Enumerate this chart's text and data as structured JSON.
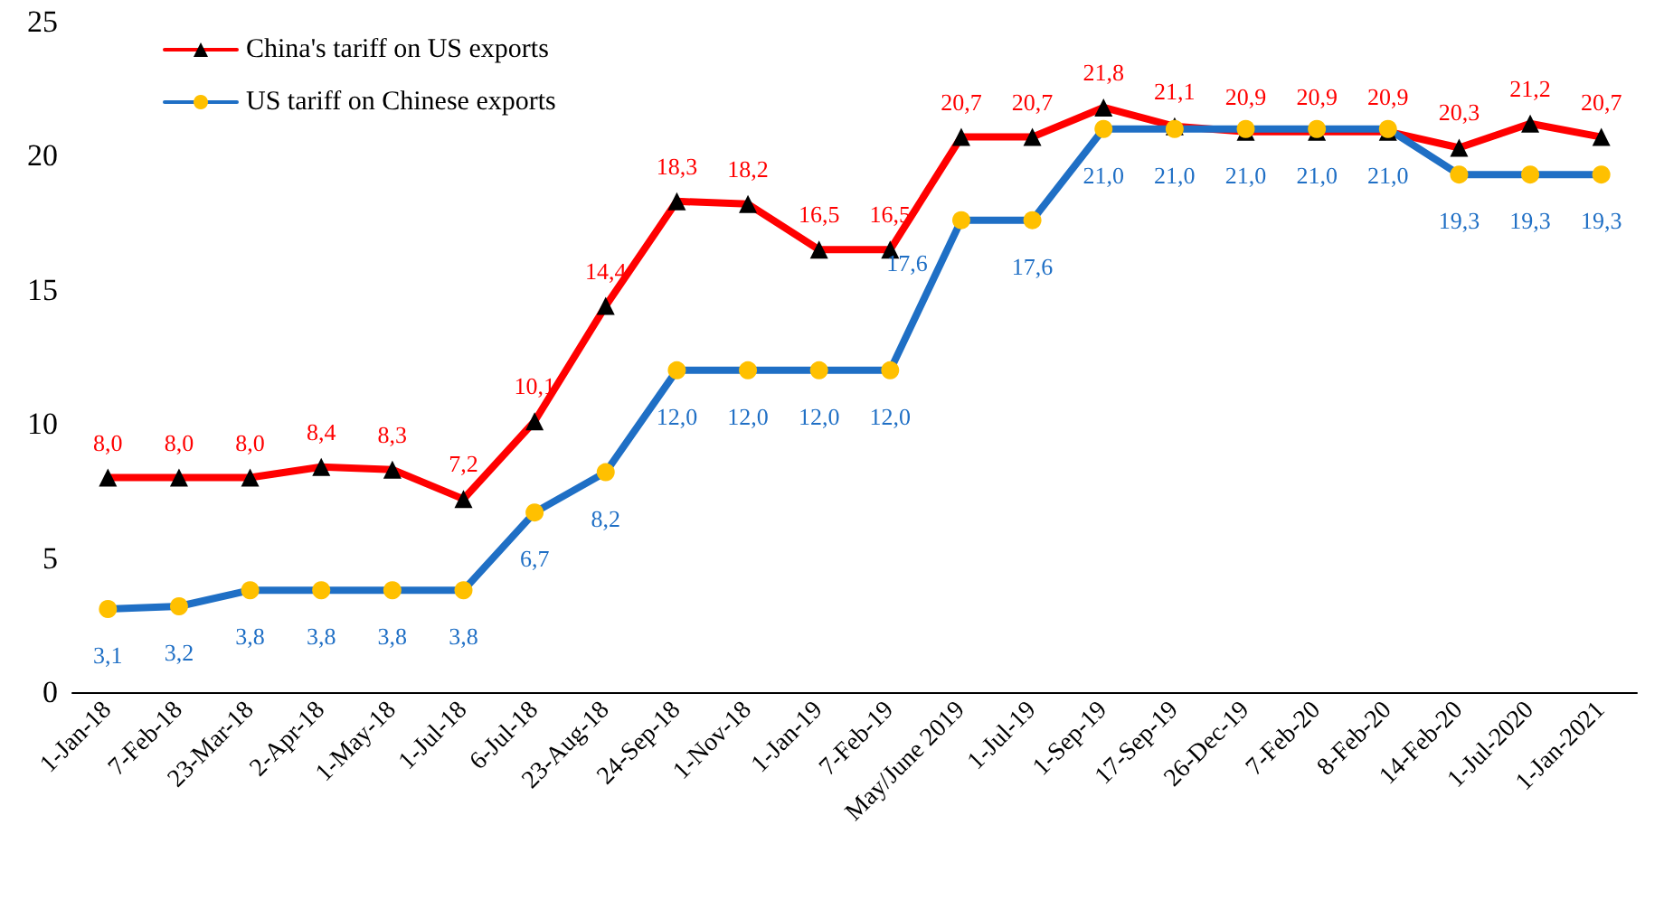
{
  "chart_data": {
    "type": "line",
    "categories": [
      "1-Jan-18",
      "7-Feb-18",
      "23-Mar-18",
      "2-Apr-18",
      "1-May-18",
      "1-Jul-18",
      "6-Jul-18",
      "23-Aug-18",
      "24-Sep-18",
      "1-Nov-18",
      "1-Jan-19",
      "7-Feb-19",
      "May/June 2019",
      "1-Jul-19",
      "1-Sep-19",
      "17-Sep-19",
      "26-Dec-19",
      "7-Feb-20",
      "8-Feb-20",
      "14-Feb-20",
      "1-Jul-2020",
      "1-Jan-2021"
    ],
    "series": [
      {
        "name": "China's tariff on US exports",
        "color": "#ff0000",
        "marker": "triangle",
        "values": [
          8.0,
          8.0,
          8.0,
          8.4,
          8.3,
          7.2,
          10.1,
          14.4,
          18.3,
          18.2,
          16.5,
          16.5,
          20.7,
          20.7,
          21.8,
          21.1,
          20.9,
          20.9,
          20.9,
          20.3,
          21.2,
          20.7
        ],
        "value_labels": [
          "8,0",
          "8,0",
          "8,0",
          "8,4",
          "8,3",
          "7,2",
          "10,1",
          "14,4",
          "18,3",
          "18,2",
          "16,5",
          "16,5",
          "20,7",
          "20,7",
          "21,8",
          "21,1",
          "20,9",
          "20,9",
          "20,9",
          "20,3",
          "21,2",
          "20,7"
        ]
      },
      {
        "name": "US tariff on Chinese exports",
        "color": "#1f6fc5",
        "marker": "circle",
        "values": [
          3.1,
          3.2,
          3.8,
          3.8,
          3.8,
          3.8,
          6.7,
          8.2,
          12.0,
          12.0,
          12.0,
          12.0,
          17.6,
          17.6,
          21.0,
          21.0,
          21.0,
          21.0,
          21.0,
          19.3,
          19.3,
          19.3
        ],
        "value_labels": [
          "3,1",
          "3,2",
          "3,8",
          "3,8",
          "3,8",
          "3,8",
          "6,7",
          "8,2",
          "12,0",
          "12,0",
          "12,0",
          "12,0",
          "17,6",
          "17,6",
          "21,0",
          "21,0",
          "21,0",
          "21,0",
          "21,0",
          "19,3",
          "19,3",
          "19,3"
        ]
      }
    ],
    "ylim": [
      0,
      25
    ],
    "yticks": [
      0,
      5,
      10,
      15,
      20,
      25
    ],
    "grid": false,
    "legend": "top left"
  }
}
